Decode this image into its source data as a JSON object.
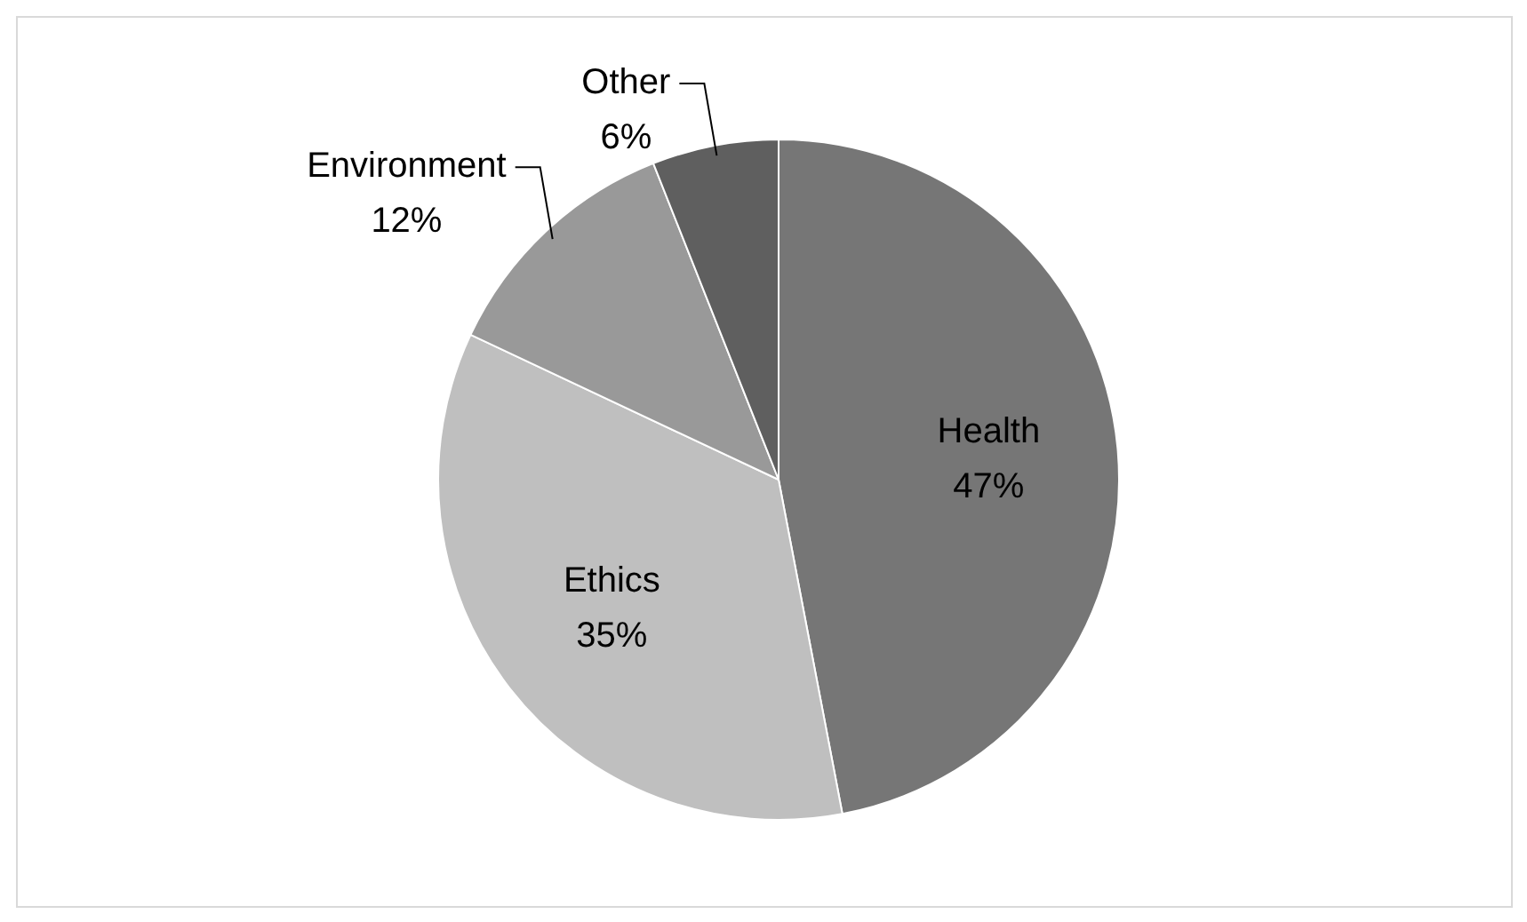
{
  "chart_data": {
    "type": "pie",
    "categories": [
      "Health",
      "Ethics",
      "Environment",
      "Other"
    ],
    "values": [
      47,
      35,
      12,
      6
    ],
    "colors": [
      "#767676",
      "#bfbfbf",
      "#999999",
      "#5f5f5f"
    ],
    "value_labels": [
      "47%",
      "35%",
      "12%",
      "6%"
    ],
    "legend": false
  }
}
